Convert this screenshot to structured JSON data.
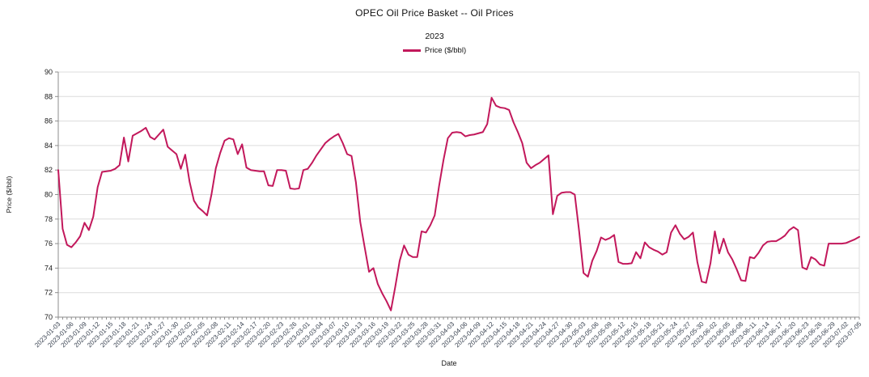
{
  "title": "OPEC Oil Price Basket -- Oil Prices",
  "subtitle": "2023",
  "legend": {
    "label": "Price ($/bbl)"
  },
  "chart_data": {
    "type": "line",
    "title": "OPEC Oil Price Basket -- Oil Prices",
    "subtitle": "2023",
    "series_name": "Price ($/bbl)",
    "xlabel": "Date",
    "ylabel": "Price ($/bbl)",
    "ylim": [
      70,
      90
    ],
    "ytick_step": 2,
    "grid": true,
    "legend_position": "top-center",
    "label_every": 3,
    "x_labels": [
      "2023-01-03",
      "2023-01-06",
      "2023-01-09",
      "2023-01-12",
      "2023-01-15",
      "2023-01-18",
      "2023-01-21",
      "2023-01-24",
      "2023-01-27",
      "2023-01-30",
      "2023-02-02",
      "2023-02-05",
      "2023-02-08",
      "2023-02-11",
      "2023-02-14",
      "2023-02-17",
      "2023-02-20",
      "2023-02-23",
      "2023-02-26",
      "2023-03-01",
      "2023-03-04",
      "2023-03-07",
      "2023-03-10",
      "2023-03-13",
      "2023-03-16",
      "2023-03-19",
      "2023-03-22",
      "2023-03-25",
      "2023-03-28",
      "2023-03-31",
      "2023-04-03",
      "2023-04-06",
      "2023-04-09",
      "2023-04-12",
      "2023-04-15",
      "2023-04-18",
      "2023-04-21",
      "2023-04-24",
      "2023-04-27",
      "2023-04-30",
      "2023-05-03",
      "2023-05-06",
      "2023-05-09",
      "2023-05-12",
      "2023-05-15",
      "2023-05-18",
      "2023-05-21",
      "2023-05-24",
      "2023-05-27",
      "2023-05-30",
      "2023-06-02",
      "2023-06-05",
      "2023-06-08",
      "2023-06-11",
      "2023-06-14",
      "2023-06-17",
      "2023-06-20",
      "2023-06-23",
      "2023-06-26",
      "2023-06-29",
      "2023-07-02",
      "2023-07-05"
    ],
    "values": [
      82.0,
      77.2,
      75.9,
      75.7,
      76.1,
      76.6,
      77.7,
      77.1,
      78.2,
      80.6,
      81.85,
      81.9,
      81.95,
      82.1,
      82.4,
      84.65,
      82.7,
      84.8,
      85.0,
      85.2,
      85.45,
      84.7,
      84.5,
      84.9,
      85.3,
      83.9,
      83.6,
      83.3,
      82.1,
      83.25,
      81.05,
      79.5,
      78.95,
      78.65,
      78.3,
      80.0,
      82.15,
      83.4,
      84.4,
      84.6,
      84.5,
      83.3,
      84.1,
      82.2,
      82.0,
      81.95,
      81.9,
      81.9,
      80.75,
      80.7,
      82.0,
      82.0,
      81.95,
      80.5,
      80.45,
      80.5,
      82.0,
      82.1,
      82.6,
      83.2,
      83.7,
      84.2,
      84.5,
      84.75,
      84.95,
      84.2,
      83.3,
      83.15,
      81.0,
      77.75,
      75.7,
      73.7,
      74.0,
      72.7,
      71.95,
      71.3,
      70.55,
      72.5,
      74.6,
      75.85,
      75.1,
      74.9,
      74.9,
      77.0,
      76.9,
      77.5,
      78.3,
      80.7,
      82.8,
      84.6,
      85.05,
      85.1,
      85.05,
      84.75,
      84.85,
      84.9,
      85.0,
      85.1,
      85.75,
      87.9,
      87.25,
      87.1,
      87.05,
      86.9,
      85.9,
      85.1,
      84.2,
      82.6,
      82.15,
      82.4,
      82.6,
      82.9,
      83.2,
      78.4,
      79.9,
      80.15,
      80.2,
      80.2,
      80.0,
      77.0,
      73.6,
      73.3,
      74.6,
      75.4,
      76.5,
      76.3,
      76.45,
      76.7,
      74.5,
      74.35,
      74.35,
      74.4,
      75.3,
      74.8,
      76.1,
      75.7,
      75.5,
      75.35,
      75.1,
      75.3,
      76.9,
      77.5,
      76.8,
      76.35,
      76.55,
      76.9,
      74.5,
      72.9,
      72.8,
      74.4,
      77.0,
      75.2,
      76.4,
      75.3,
      74.7,
      73.9,
      73.0,
      72.95,
      74.9,
      74.8,
      75.25,
      75.85,
      76.15,
      76.2,
      76.2,
      76.4,
      76.65,
      77.1,
      77.35,
      77.1,
      74.05,
      73.9,
      74.9,
      74.7,
      74.3,
      74.2,
      76.0,
      76.0,
      76.0,
      76.0,
      76.05,
      76.2,
      76.35,
      76.55
    ],
    "colors": {
      "line": "#c2185b",
      "grid": "#dcdcdc",
      "axis": "#8c8c8c",
      "y_tick_label": "#1a1a1a",
      "x_tick_label": "#37404f",
      "axis_title": "#1a1a1a"
    }
  }
}
